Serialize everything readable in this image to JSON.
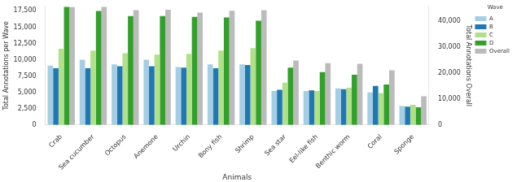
{
  "chart_data": {
    "type": "bar",
    "x_label": "Animals",
    "y_label": "Total Annotations per Wave",
    "y2_label": "Total Annotations Overall",
    "categories": [
      "Crab",
      "Sea cucumber",
      "Octopus",
      "Anemone",
      "Urchin",
      "Bony fish",
      "Shrimp",
      "Sea star",
      "Eel-like fish",
      "Benthic worm",
      "Coral",
      "Sponge"
    ],
    "series": [
      {
        "name": "A",
        "color": "#a6cee3",
        "values": [
          9100,
          10000,
          9300,
          10000,
          8900,
          9300,
          9300,
          5200,
          5200,
          5600,
          5000,
          2900
        ]
      },
      {
        "name": "B",
        "color": "#1f78b4",
        "values": [
          8700,
          8700,
          9000,
          9000,
          8800,
          8700,
          9200,
          5400,
          5300,
          5500,
          6000,
          2800
        ]
      },
      {
        "name": "C",
        "color": "#b2df8a",
        "values": [
          11700,
          11400,
          11000,
          10800,
          10900,
          11400,
          11800,
          6500,
          5200,
          5700,
          4900,
          3100
        ]
      },
      {
        "name": "D",
        "color": "#33a02c",
        "values": [
          18100,
          17500,
          16700,
          16700,
          16600,
          16500,
          16000,
          8800,
          8100,
          7700,
          6200,
          2700
        ]
      },
      {
        "name": "Overall",
        "color": "#bbbbbb",
        "axis": "y2",
        "values": [
          45200,
          45300,
          44000,
          44200,
          43100,
          43800,
          44000,
          24700,
          23700,
          23500,
          21000,
          11000
        ]
      }
    ],
    "legend_title": "Wave",
    "legend": "right",
    "ylim": [
      0,
      18200
    ],
    "yticks": [
      0,
      2500,
      5000,
      7500,
      10000,
      12500,
      15000,
      17500
    ],
    "y2lim": [
      0,
      45500
    ],
    "y2ticks": [
      0,
      10000,
      20000,
      30000,
      40000
    ],
    "grid": false
  }
}
